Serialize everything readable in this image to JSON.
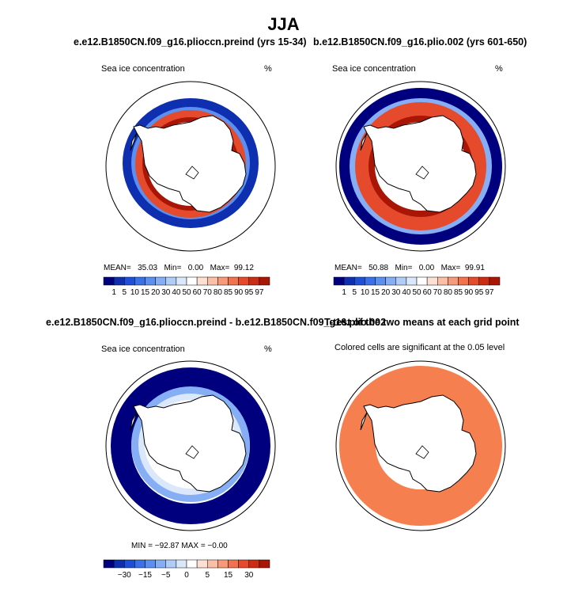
{
  "title": "JJA",
  "colors": {
    "ice_scale": [
      "#00007f",
      "#0d2fb0",
      "#1f4fd6",
      "#3a70e8",
      "#5b8ff0",
      "#86aef4",
      "#b0cdf7",
      "#dbe8fb",
      "#ffffff",
      "#fde0d3",
      "#fbbfa6",
      "#f79a7a",
      "#f2714f",
      "#e44a2b",
      "#cc2b14",
      "#aa1606",
      "#7f0000"
    ],
    "significance": "#f57f4f",
    "antarctica_fill": "#ffffff",
    "coast_line": "#000000"
  },
  "panels": [
    {
      "id": "preind",
      "title": "e.e12.B1850CN.f09_g16.plioccn.preind (yrs 15-34)",
      "left_label": "Sea ice concentration",
      "right_label": "%",
      "stats": {
        "mean_label": "MEAN=",
        "mean": "35.03",
        "min_label": "Min=",
        "min": "0.00",
        "max_label": "Max=",
        "max": "99.12"
      },
      "colorbar_ticks": [
        "1",
        "5",
        "10",
        "15",
        "20",
        "30",
        "40",
        "50",
        "60",
        "70",
        "80",
        "85",
        "90",
        "95",
        "97"
      ]
    },
    {
      "id": "plio",
      "title": "b.e12.B1850CN.f09_g16.plio.002 (yrs 601-650)",
      "left_label": "Sea ice concentration",
      "right_label": "%",
      "stats": {
        "mean_label": "MEAN=",
        "mean": "50.88",
        "min_label": "Min=",
        "min": "0.00",
        "max_label": "Max=",
        "max": "99.91"
      },
      "colorbar_ticks": [
        "1",
        "5",
        "10",
        "15",
        "20",
        "30",
        "40",
        "50",
        "60",
        "70",
        "80",
        "85",
        "90",
        "95",
        "97"
      ]
    },
    {
      "id": "diff",
      "title": "e.e12.B1850CN.f09_g16.plioccn.preind - b.e12.B1850CN.f09_g16.plio.002",
      "left_label": "Sea ice concentration",
      "right_label": "%",
      "stats_text": "MIN = −92.87  MAX = −0.00",
      "colorbar_ticks": [
        "−30",
        "−15",
        "−5",
        "0",
        "5",
        "15",
        "30"
      ]
    },
    {
      "id": "ttest",
      "title": "T-test of the two means at each grid point",
      "left_label": "Colored cells are significant at the 0.05 level"
    }
  ],
  "chart_data": [
    {
      "type": "heatmap",
      "title": "e.e12.B1850CN.f09_g16.plioccn.preind (yrs 15-34)",
      "variable": "Sea ice concentration",
      "units": "%",
      "mean": 35.03,
      "min": 0.0,
      "max": 99.12,
      "contour_levels": [
        1,
        5,
        10,
        15,
        20,
        30,
        40,
        50,
        60,
        70,
        80,
        85,
        90,
        95,
        97
      ]
    },
    {
      "type": "heatmap",
      "title": "b.e12.B1850CN.f09_g16.plio.002 (yrs 601-650)",
      "variable": "Sea ice concentration",
      "units": "%",
      "mean": 50.88,
      "min": 0.0,
      "max": 99.91,
      "contour_levels": [
        1,
        5,
        10,
        15,
        20,
        30,
        40,
        50,
        60,
        70,
        80,
        85,
        90,
        95,
        97
      ]
    },
    {
      "type": "heatmap",
      "title": "e.e12.B1850CN.f09_g16.plioccn.preind - b.e12.B1850CN.f09_g16.plio.002",
      "variable": "Sea ice concentration",
      "units": "%",
      "min": -92.87,
      "max": -0.0,
      "contour_levels": [
        -30,
        -15,
        -5,
        0,
        5,
        15,
        30
      ]
    },
    {
      "type": "heatmap",
      "title": "T-test of the two means at each grid point",
      "note": "Colored cells are significant at the 0.05 level",
      "significance_level": 0.05
    }
  ]
}
